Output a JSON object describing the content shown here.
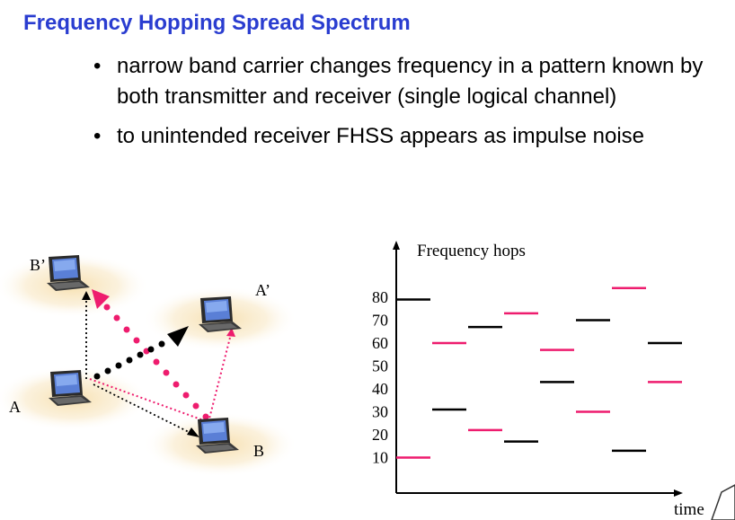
{
  "slide": {
    "title": "Frequency Hopping Spread Spectrum",
    "bullets": [
      "narrow band carrier changes frequency in a pattern known by both transmitter and receiver (single logical channel)",
      "to unintended receiver FHSS appears as impulse noise"
    ]
  },
  "diagram": {
    "nodes": [
      {
        "id": "B'",
        "label": "B’",
        "icon": "laptop-icon"
      },
      {
        "id": "A'",
        "label": "A’",
        "icon": "laptop-icon"
      },
      {
        "id": "A",
        "label": "A",
        "icon": "laptop-icon"
      },
      {
        "id": "B",
        "label": "B",
        "icon": "laptop-icon"
      }
    ],
    "colors": {
      "pink": "#ee1c6e",
      "black": "#000000",
      "halo": "#f6dca6"
    }
  },
  "chart_data": {
    "type": "line",
    "ylabel": "Frequency hops",
    "xlabel": "time",
    "yticks": [
      80,
      70,
      60,
      50,
      40,
      30,
      20,
      10
    ],
    "ylim": [
      0,
      90
    ],
    "slots": 8,
    "series": [
      {
        "color": "#ee1c6e",
        "points": [
          [
            1,
            10
          ],
          [
            2,
            60
          ],
          [
            3,
            22
          ],
          [
            4,
            73
          ],
          [
            5,
            57
          ],
          [
            6,
            30
          ],
          [
            7,
            84
          ],
          [
            8,
            43
          ]
        ]
      },
      {
        "color": "#000000",
        "points": [
          [
            1,
            79
          ],
          [
            2,
            31
          ],
          [
            3,
            67
          ],
          [
            4,
            17
          ],
          [
            5,
            43
          ],
          [
            6,
            70
          ],
          [
            7,
            13
          ],
          [
            8,
            60
          ]
        ]
      }
    ]
  }
}
